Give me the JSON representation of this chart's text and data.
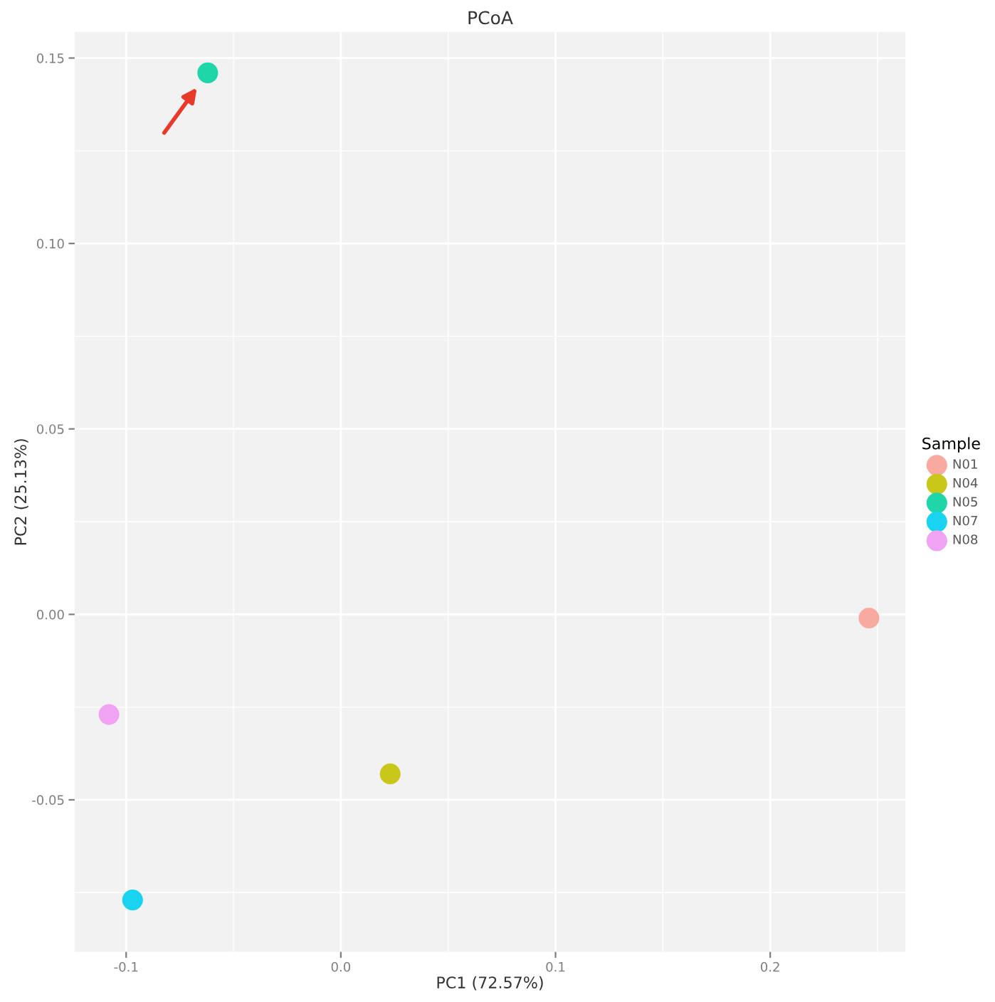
{
  "chart_data": {
    "type": "scatter",
    "title": "PCoA",
    "xlabel": "PC1 (72.57%)",
    "ylabel": "PC2 (25.13%)",
    "legend_title": "Sample",
    "series": [
      {
        "name": "N01",
        "color": "#f8a9a0",
        "x": [
          0.246
        ],
        "values": [
          -0.001
        ]
      },
      {
        "name": "N04",
        "color": "#c9c81a",
        "x": [
          0.023
        ],
        "values": [
          -0.043
        ]
      },
      {
        "name": "N05",
        "color": "#1fd6a8",
        "x": [
          -0.062
        ],
        "values": [
          0.146
        ]
      },
      {
        "name": "N07",
        "color": "#1ad3f1",
        "x": [
          -0.097
        ],
        "values": [
          -0.077
        ]
      },
      {
        "name": "N08",
        "color": "#f0a3f2",
        "x": [
          -0.108
        ],
        "values": [
          -0.027
        ]
      }
    ],
    "xlim": [
      -0.124,
      0.263
    ],
    "ylim": [
      -0.091,
      0.157
    ],
    "xticks": [
      {
        "value": -0.1,
        "label": "-0.1"
      },
      {
        "value": 0.0,
        "label": "0.0"
      },
      0.1,
      0.2
    ],
    "yticks": [
      {
        "value": -0.05,
        "label": "-0.05"
      },
      {
        "value": 0.0,
        "label": "0.00"
      },
      0.05,
      {
        "value": 0.1,
        "label": "0.10"
      },
      0.15
    ],
    "grid": true,
    "legend": "right",
    "marker": "circle"
  }
}
